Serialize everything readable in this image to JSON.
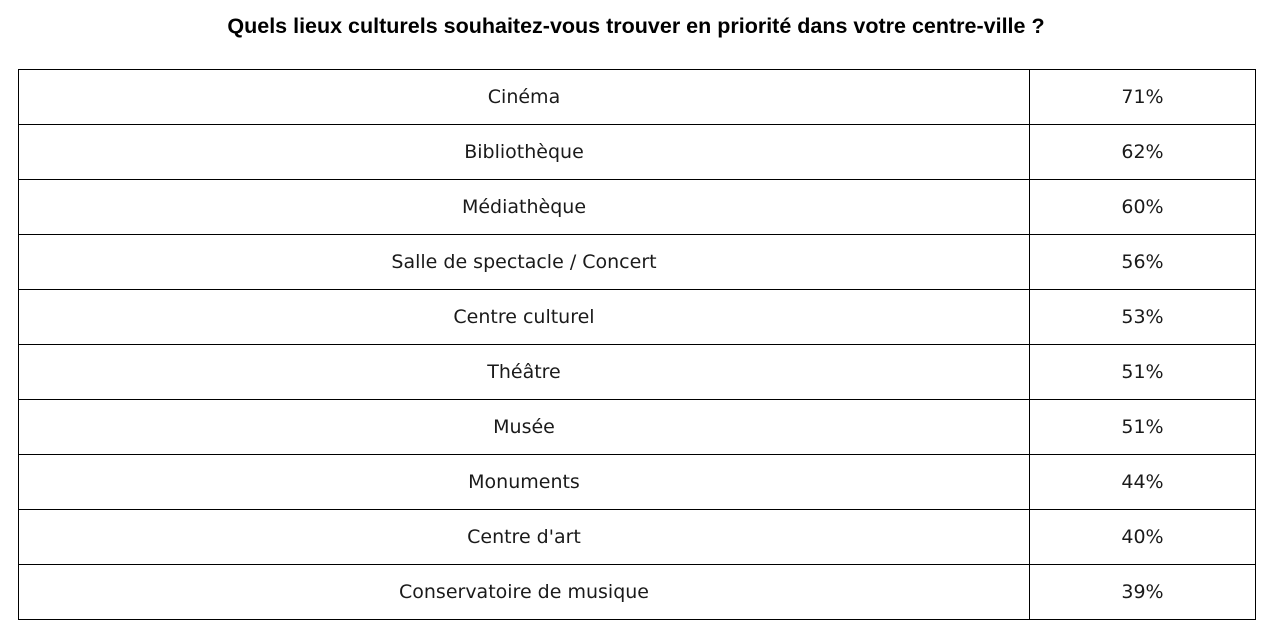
{
  "chart_data": {
    "type": "table",
    "title": "Quels lieux culturels souhaitez-vous trouver en priorité dans votre centre-ville ?",
    "rows": [
      {
        "label": "Cinéma",
        "value": 71,
        "display": "71%"
      },
      {
        "label": "Bibliothèque",
        "value": 62,
        "display": "62%"
      },
      {
        "label": "Médiathèque",
        "value": 60,
        "display": "60%"
      },
      {
        "label": "Salle de spectacle / Concert",
        "value": 56,
        "display": "56%"
      },
      {
        "label": "Centre culturel",
        "value": 53,
        "display": "53%"
      },
      {
        "label": "Théâtre",
        "value": 51,
        "display": "51%"
      },
      {
        "label": "Musée",
        "value": 51,
        "display": "51%"
      },
      {
        "label": "Monuments",
        "value": 44,
        "display": "44%"
      },
      {
        "label": "Centre d'art",
        "value": 40,
        "display": "40%"
      },
      {
        "label": "Conservatoire de musique",
        "value": 39,
        "display": "39%"
      }
    ]
  }
}
